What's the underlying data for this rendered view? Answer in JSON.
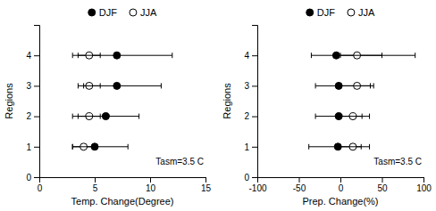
{
  "chart_data": [
    {
      "type": "scatter",
      "xlabel": "Temp. Change(Degree)",
      "ylabel": "Regions",
      "annotation": "Tasm=3.5 C",
      "xlim": [
        0,
        15
      ],
      "xticks": [
        0,
        5,
        10,
        15
      ],
      "ylim": [
        0,
        5
      ],
      "yticks": [
        0,
        1,
        2,
        3,
        4
      ],
      "legend": "top",
      "series": [
        {
          "name": "DJF",
          "color": "black",
          "marker": "circle",
          "x": [
            5.0,
            6.0,
            7.0,
            7.0
          ],
          "values": [
            1,
            2,
            3,
            4
          ],
          "xerr_low": [
            2.0,
            2.5,
            3.0,
            3.5
          ],
          "xerr_high": [
            3.0,
            3.0,
            4.0,
            5.0
          ]
        },
        {
          "name": "JJA",
          "color": "black",
          "marker": "open-circle",
          "x": [
            4.0,
            4.5,
            4.5,
            4.5
          ],
          "values": [
            1,
            2,
            3,
            4
          ],
          "xerr_low": [
            1.0,
            1.5,
            1.0,
            1.5
          ],
          "xerr_high": [
            1.0,
            1.0,
            1.0,
            1.0
          ]
        }
      ]
    },
    {
      "type": "scatter",
      "xlabel": "Prep. Change(%)",
      "ylabel": "Regions",
      "annotation": "Tasm=3.5 C",
      "xlim": [
        -100,
        100
      ],
      "xticks": [
        -100,
        -50,
        0,
        50,
        100
      ],
      "ylim": [
        0,
        5
      ],
      "yticks": [
        0,
        1,
        2,
        3,
        4
      ],
      "legend": "top",
      "series": [
        {
          "name": "DJF",
          "color": "black",
          "marker": "circle",
          "x": [
            -3.0,
            -2.0,
            -2.0,
            -5.0
          ],
          "values": [
            1,
            2,
            3,
            4
          ],
          "xerr_low": [
            35.0,
            28.0,
            28.0,
            30.0
          ],
          "xerr_high": [
            28.0,
            28.0,
            38.0,
            55.0
          ]
        },
        {
          "name": "JJA",
          "color": "black",
          "marker": "open-circle",
          "x": [
            15.0,
            15.0,
            20.0,
            20.0
          ],
          "values": [
            1,
            2,
            3,
            4
          ],
          "xerr_low": [
            20.0,
            15.0,
            20.0,
            20.0
          ],
          "xerr_high": [
            20.0,
            20.0,
            20.0,
            70.0
          ]
        }
      ]
    }
  ]
}
